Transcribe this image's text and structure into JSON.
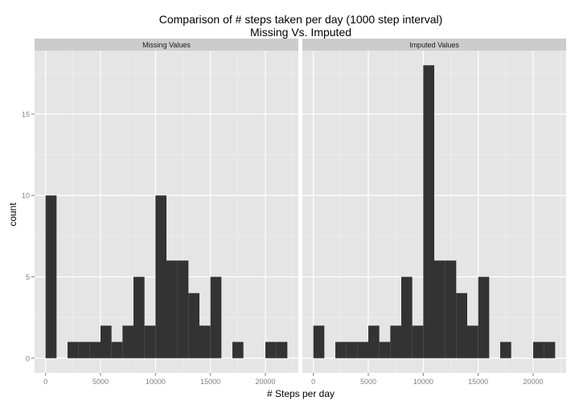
{
  "chart_data": {
    "type": "bar",
    "title": "Comparison of # steps taken per day (1000 step interval)",
    "subtitle": "Missing Vs. Imputed",
    "xlabel": "# Steps per day",
    "ylabel": "count",
    "xlim": [
      -1000,
      23000
    ],
    "ylim": [
      -0.9,
      18.9
    ],
    "x_ticks": [
      0,
      5000,
      10000,
      15000,
      20000
    ],
    "x_tick_labels": [
      "0",
      "5000",
      "10000",
      "15000",
      "20000"
    ],
    "y_ticks": [
      0,
      5,
      10,
      15
    ],
    "y_tick_labels": [
      "0",
      "5",
      "10",
      "15"
    ],
    "bin_width": 1000,
    "bar_color": "#333333",
    "panel_background": "#e5e5e5",
    "strip_background": "#cccccc",
    "grid": true,
    "facets": [
      {
        "label": "Missing Values",
        "bins": [
          {
            "x0": 0,
            "count": 10
          },
          {
            "x0": 2000,
            "count": 1
          },
          {
            "x0": 3000,
            "count": 1
          },
          {
            "x0": 4000,
            "count": 1
          },
          {
            "x0": 5000,
            "count": 2
          },
          {
            "x0": 6000,
            "count": 1
          },
          {
            "x0": 7000,
            "count": 2
          },
          {
            "x0": 8000,
            "count": 5
          },
          {
            "x0": 9000,
            "count": 2
          },
          {
            "x0": 10000,
            "count": 10
          },
          {
            "x0": 11000,
            "count": 6
          },
          {
            "x0": 12000,
            "count": 6
          },
          {
            "x0": 13000,
            "count": 4
          },
          {
            "x0": 14000,
            "count": 2
          },
          {
            "x0": 15000,
            "count": 5
          },
          {
            "x0": 17000,
            "count": 1
          },
          {
            "x0": 20000,
            "count": 1
          },
          {
            "x0": 21000,
            "count": 1
          }
        ]
      },
      {
        "label": "Imputed Values",
        "bins": [
          {
            "x0": 0,
            "count": 2
          },
          {
            "x0": 2000,
            "count": 1
          },
          {
            "x0": 3000,
            "count": 1
          },
          {
            "x0": 4000,
            "count": 1
          },
          {
            "x0": 5000,
            "count": 2
          },
          {
            "x0": 6000,
            "count": 1
          },
          {
            "x0": 7000,
            "count": 2
          },
          {
            "x0": 8000,
            "count": 5
          },
          {
            "x0": 9000,
            "count": 2
          },
          {
            "x0": 10000,
            "count": 18
          },
          {
            "x0": 11000,
            "count": 6
          },
          {
            "x0": 12000,
            "count": 6
          },
          {
            "x0": 13000,
            "count": 4
          },
          {
            "x0": 14000,
            "count": 2
          },
          {
            "x0": 15000,
            "count": 5
          },
          {
            "x0": 17000,
            "count": 1
          },
          {
            "x0": 20000,
            "count": 1
          },
          {
            "x0": 21000,
            "count": 1
          }
        ]
      }
    ]
  }
}
